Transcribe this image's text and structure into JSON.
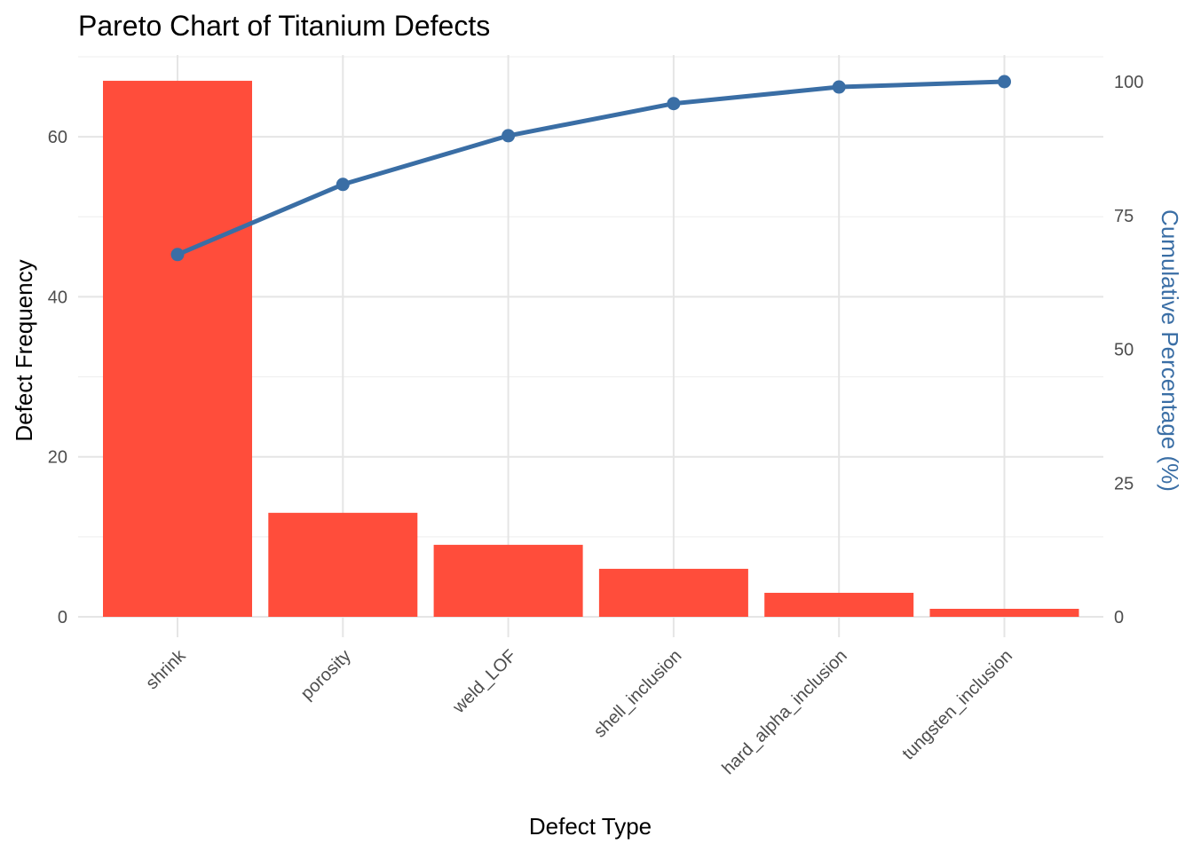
{
  "chart_data": {
    "type": "bar",
    "title": "Pareto Chart of Titanium Defects",
    "xlabel": "Defect Type",
    "ylabel": "Defect Frequency",
    "y2label": "Cumulative Percentage (%)",
    "categories": [
      "shrink",
      "porosity",
      "weld_LOF",
      "shell_inclusion",
      "hard_alpha_inclusion",
      "tungsten_inclusion"
    ],
    "series": [
      {
        "values": [
          67,
          13,
          9,
          6,
          3,
          1
        ],
        "axis": "left",
        "style": "bar"
      },
      {
        "values": [
          67.7,
          80.8,
          89.9,
          95.9,
          99.0,
          100.0
        ],
        "axis": "right",
        "style": "line+points"
      }
    ],
    "ylim": [
      0,
      70
    ],
    "yticks": [
      0,
      20,
      40,
      60
    ],
    "y2lim": [
      0,
      104.2
    ],
    "y2ticks": [
      0,
      25,
      50,
      75,
      100
    ],
    "grid": true,
    "colors": {
      "bar": "#FF4D3B",
      "line": "#3A6EA5"
    }
  }
}
